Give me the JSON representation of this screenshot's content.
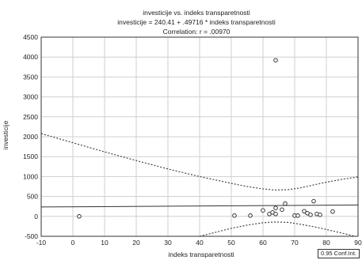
{
  "chart_data": {
    "type": "scatter",
    "title_lines": [
      "investicije vs. indeks  transparetnosti",
      "investicije = 240.41 + .49716 * indeks  transparetnosti",
      "Correlation: r = .00970"
    ],
    "xlabel": "indeks  transparetnosti",
    "ylabel": "investicije",
    "xlim": [
      -10,
      90
    ],
    "ylim": [
      -500,
      4500
    ],
    "xticks": [
      -10,
      0,
      10,
      20,
      30,
      40,
      50,
      60,
      70,
      80,
      90
    ],
    "yticks": [
      -500,
      0,
      500,
      1000,
      1500,
      2000,
      2500,
      3000,
      3500,
      4000,
      4500
    ],
    "grid": true,
    "regression": {
      "intercept": 240.41,
      "slope": 0.49716
    },
    "confidence_band": {
      "level": 0.95,
      "upper": [
        [
          -10,
          2080
        ],
        [
          0,
          1850
        ],
        [
          10,
          1620
        ],
        [
          20,
          1400
        ],
        [
          30,
          1190
        ],
        [
          40,
          1000
        ],
        [
          50,
          830
        ],
        [
          55,
          750
        ],
        [
          60,
          690
        ],
        [
          64,
          660
        ],
        [
          68,
          670
        ],
        [
          72,
          720
        ],
        [
          76,
          790
        ],
        [
          80,
          860
        ],
        [
          85,
          930
        ],
        [
          90,
          990
        ]
      ],
      "lower": [
        [
          40,
          -500
        ],
        [
          45,
          -400
        ],
        [
          50,
          -300
        ],
        [
          55,
          -220
        ],
        [
          60,
          -160
        ],
        [
          64,
          -140
        ],
        [
          68,
          -150
        ],
        [
          72,
          -200
        ],
        [
          76,
          -260
        ],
        [
          80,
          -330
        ],
        [
          85,
          -420
        ],
        [
          89,
          -500
        ]
      ]
    },
    "points": [
      [
        2,
        0
      ],
      [
        64,
        3920
      ],
      [
        51,
        20
      ],
      [
        56,
        20
      ],
      [
        60,
        150
      ],
      [
        62,
        60
      ],
      [
        63,
        100
      ],
      [
        64,
        210
      ],
      [
        64,
        60
      ],
      [
        66,
        170
      ],
      [
        67,
        320
      ],
      [
        70,
        20
      ],
      [
        71,
        20
      ],
      [
        73,
        130
      ],
      [
        74,
        80
      ],
      [
        75,
        40
      ],
      [
        76,
        380
      ],
      [
        77,
        60
      ],
      [
        78,
        40
      ],
      [
        82,
        120
      ]
    ],
    "legend": {
      "label": "0.95 Conf.Int.",
      "placement": "bottom-right"
    }
  }
}
